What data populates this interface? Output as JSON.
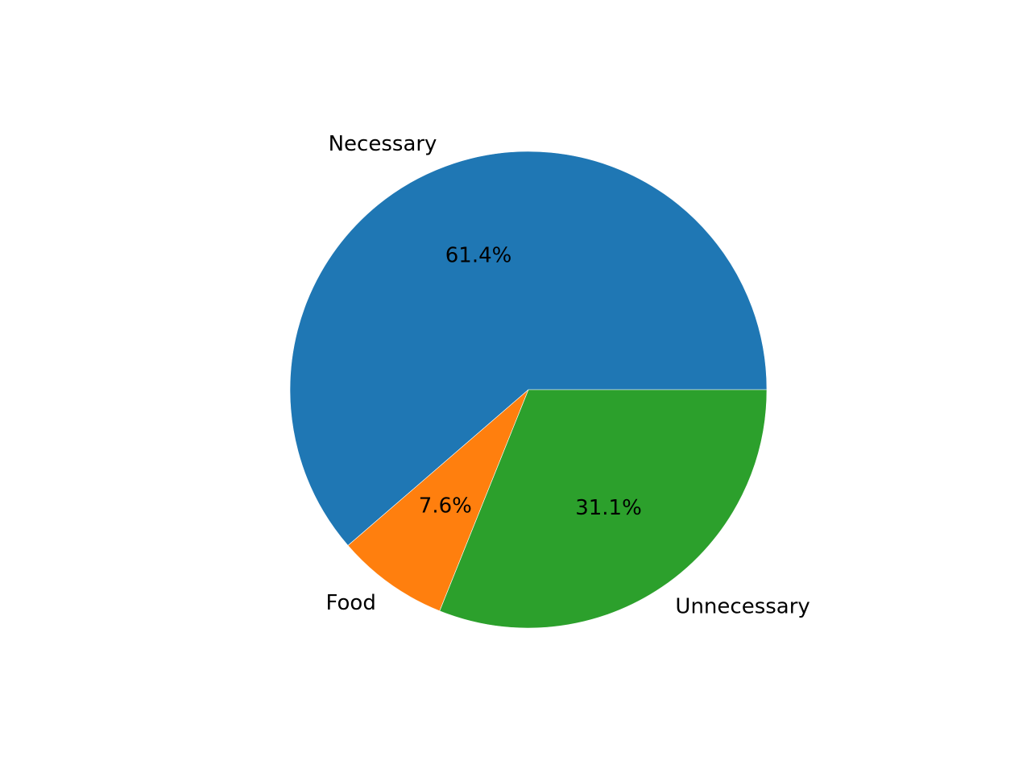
{
  "chart_data": {
    "type": "pie",
    "title": "",
    "start_angle_deg": 0,
    "direction": "counterclockwise",
    "slices": [
      {
        "label": "Necessary",
        "value": 61.4,
        "pct_label": "61.4%",
        "color": "#1f77b4"
      },
      {
        "label": "Food",
        "value": 7.6,
        "pct_label": "7.6%",
        "color": "#ff7f0e"
      },
      {
        "label": "Unnecessary",
        "value": 31.1,
        "pct_label": "31.1%",
        "color": "#2ca02c"
      }
    ]
  }
}
